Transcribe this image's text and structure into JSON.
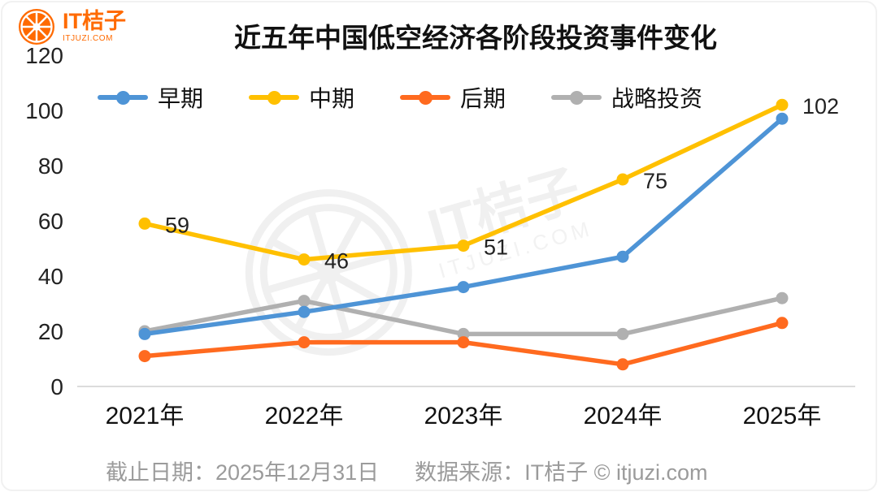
{
  "brand": {
    "logo_text": "IT桔子",
    "logo_sub": "ITJUZI.COM",
    "color": "#FF6A00"
  },
  "title": "近五年中国低空经济各阶段投资事件变化",
  "legend": [
    {
      "label": "早期",
      "color": "#4E94D6"
    },
    {
      "label": "中期",
      "color": "#FFC000"
    },
    {
      "label": "后期",
      "color": "#FF6A1F"
    },
    {
      "label": "战略投资",
      "color": "#B0B0B0"
    }
  ],
  "chart_data": {
    "type": "line",
    "title": "近五年中国低空经济各阶段投资事件变化",
    "categories": [
      "2021年",
      "2022年",
      "2023年",
      "2024年",
      "2025年"
    ],
    "series": [
      {
        "name": "战略投资",
        "color": "#B0B0B0",
        "values": [
          20,
          31,
          19,
          19,
          32
        ],
        "labeled": false
      },
      {
        "name": "早期",
        "color": "#4E94D6",
        "values": [
          19,
          27,
          36,
          47,
          97
        ],
        "labeled": false
      },
      {
        "name": "后期",
        "color": "#FF6A1F",
        "values": [
          11,
          16,
          16,
          8,
          23
        ],
        "labeled": false
      },
      {
        "name": "中期",
        "color": "#FFC000",
        "values": [
          59,
          46,
          51,
          75,
          102
        ],
        "labeled": true
      }
    ],
    "xlabel": "",
    "ylabel": "",
    "ylim": [
      0,
      120
    ],
    "yticks": [
      0,
      20,
      40,
      60,
      80,
      100,
      120
    ],
    "grid": false,
    "legend_position": "top"
  },
  "watermark": {
    "text": "IT桔子",
    "sub": "ITJUZI.COM"
  },
  "footer": {
    "deadline": "截止日期：2025年12月31日",
    "source": "数据来源：IT桔子 © itjuzi.com"
  }
}
